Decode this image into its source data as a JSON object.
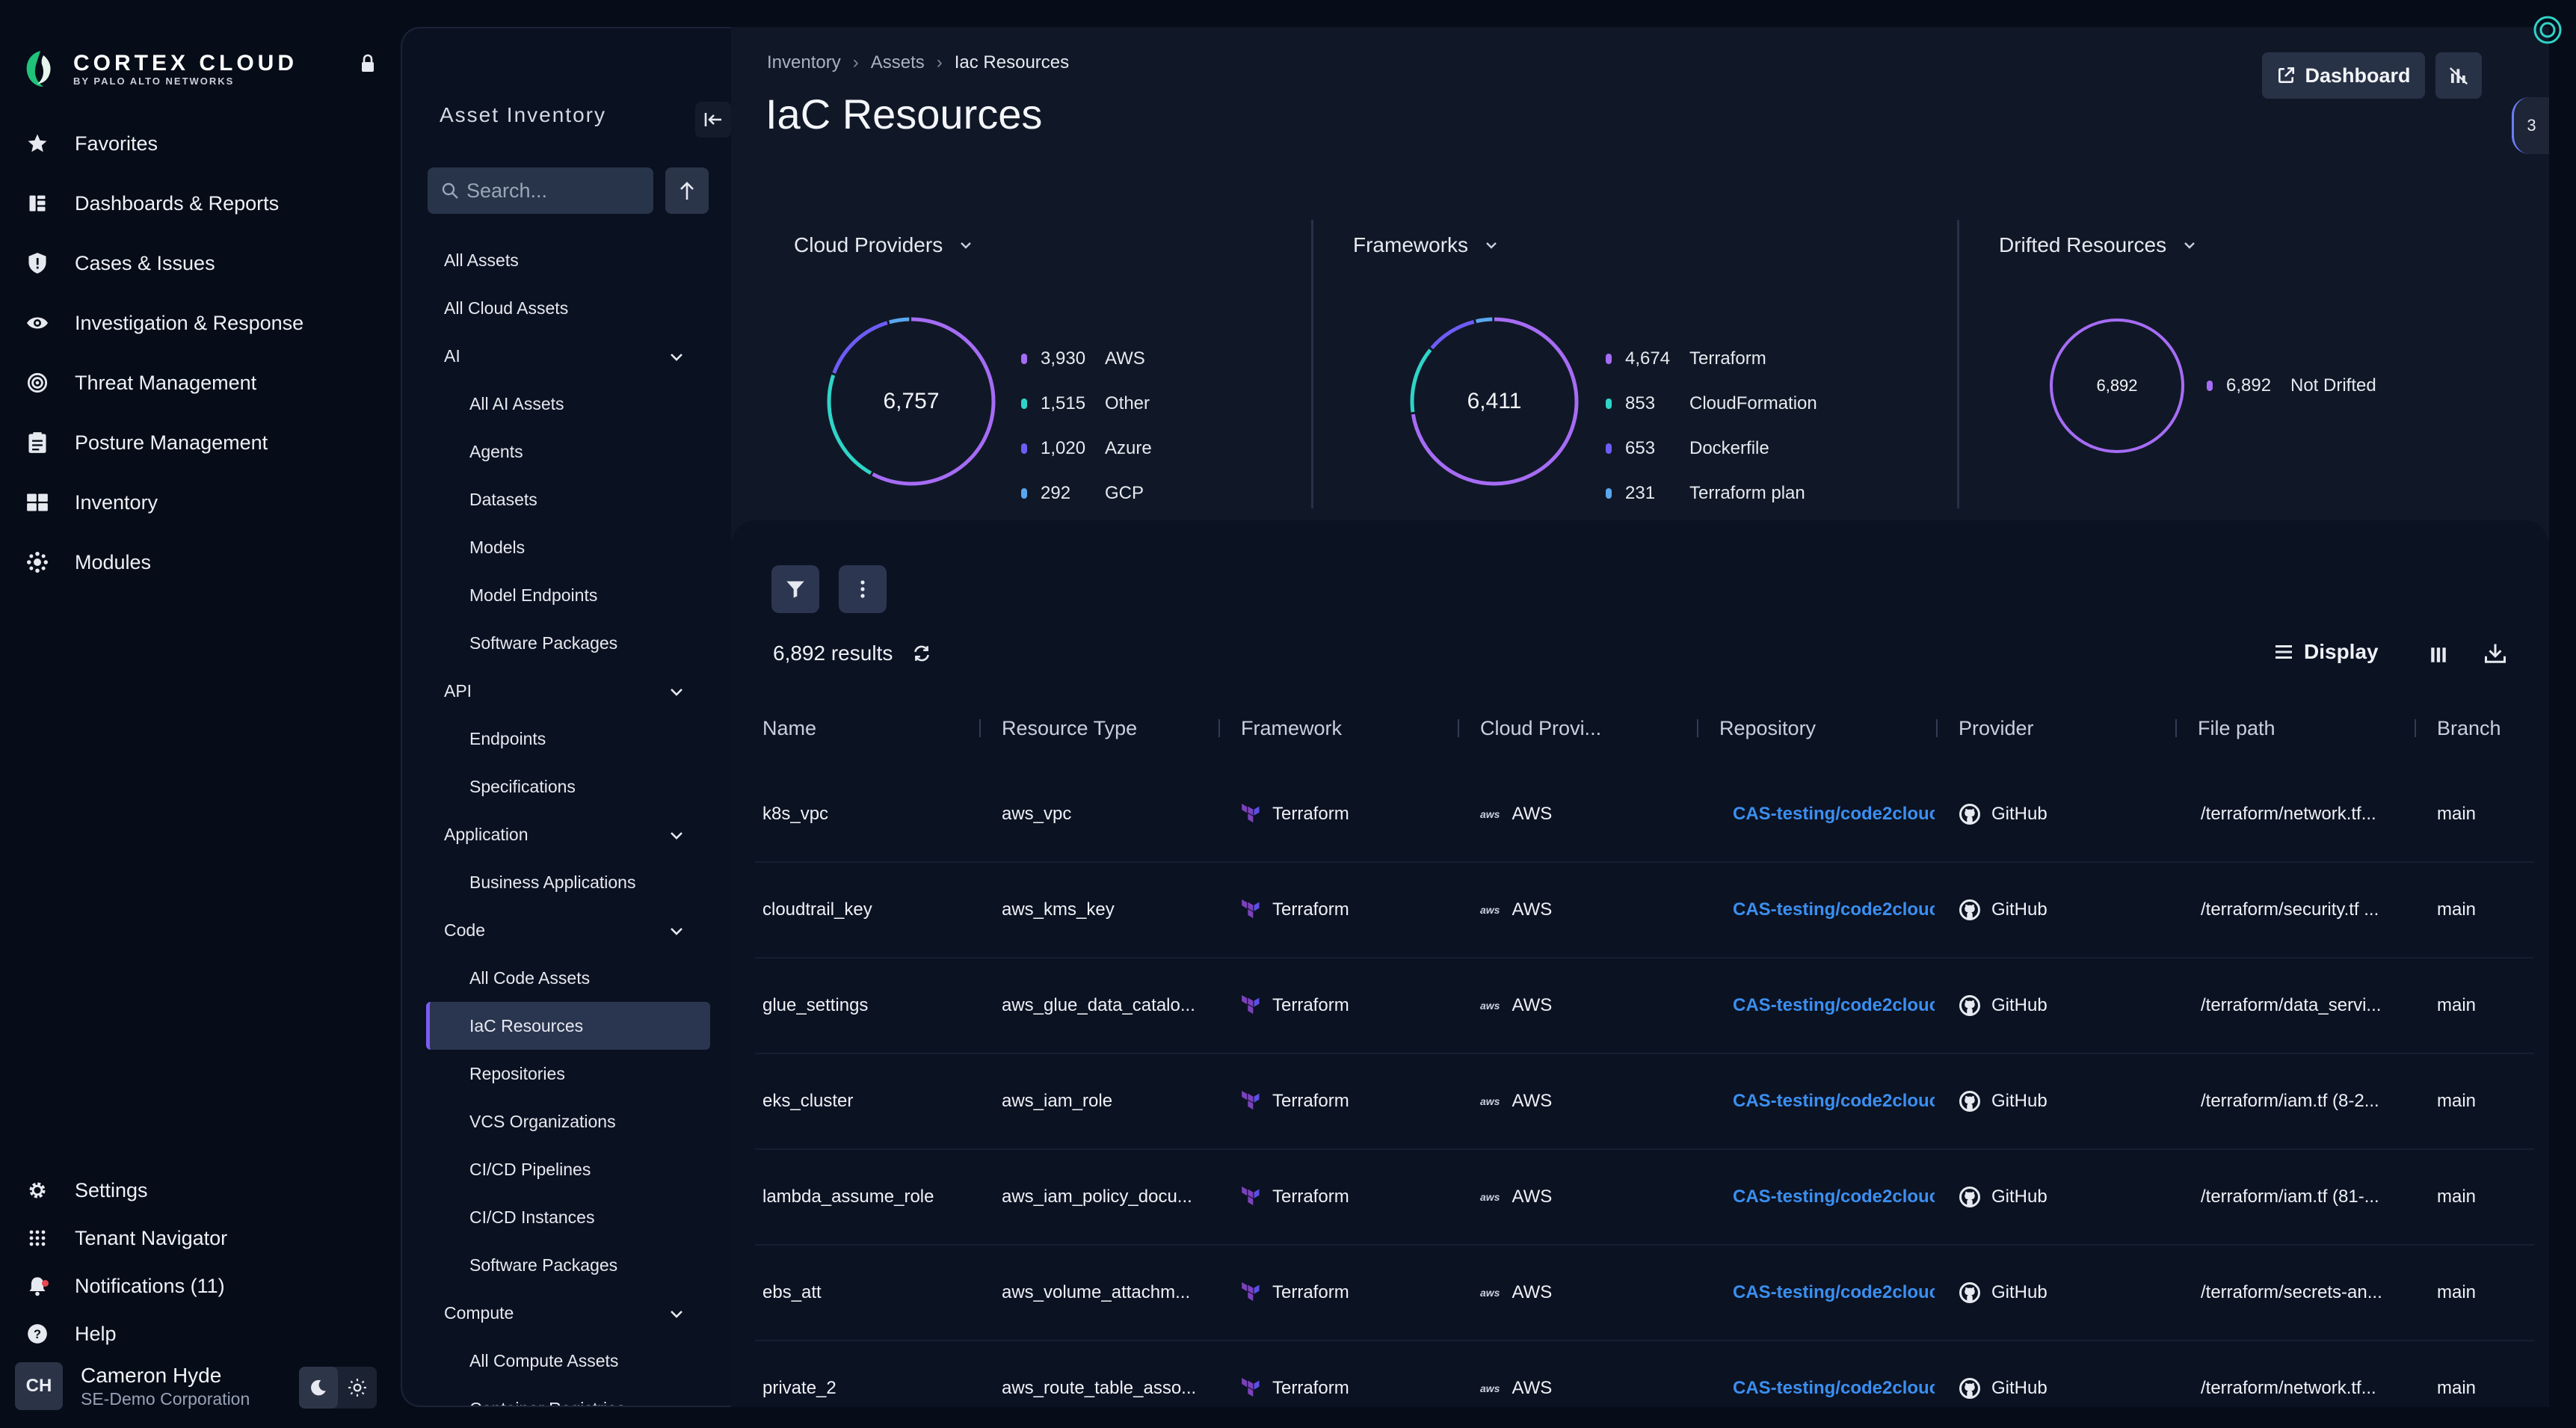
{
  "brand": {
    "name": "CORTEX CLOUD",
    "sub": "BY PALO ALTO NETWORKS"
  },
  "nav": {
    "items": [
      {
        "label": "Favorites",
        "icon": "star-icon"
      },
      {
        "label": "Dashboards & Reports",
        "icon": "dashboard-icon"
      },
      {
        "label": "Cases & Issues",
        "icon": "shield-alert-icon"
      },
      {
        "label": "Investigation & Response",
        "icon": "eye-icon"
      },
      {
        "label": "Threat Management",
        "icon": "target-icon"
      },
      {
        "label": "Posture Management",
        "icon": "clipboard-icon"
      },
      {
        "label": "Inventory",
        "icon": "inventory-icon"
      },
      {
        "label": "Modules",
        "icon": "modules-icon"
      }
    ],
    "bottom": [
      {
        "label": "Settings",
        "icon": "gear-icon"
      },
      {
        "label": "Tenant Navigator",
        "icon": "grid-icon"
      },
      {
        "label": "Notifications (11)",
        "icon": "bell-icon"
      },
      {
        "label": "Help",
        "icon": "help-icon"
      }
    ]
  },
  "user": {
    "initials": "CH",
    "name": "Cameron Hyde",
    "org": "SE-Demo Corporation"
  },
  "asset_panel": {
    "title": "Asset Inventory",
    "search_placeholder": "Search...",
    "tree": [
      {
        "label": "All Assets",
        "level": 0
      },
      {
        "label": "All Cloud Assets",
        "level": 0
      },
      {
        "label": "AI",
        "level": 0,
        "expandable": true
      },
      {
        "label": "All AI Assets",
        "level": 1
      },
      {
        "label": "Agents",
        "level": 1
      },
      {
        "label": "Datasets",
        "level": 1
      },
      {
        "label": "Models",
        "level": 1
      },
      {
        "label": "Model Endpoints",
        "level": 1
      },
      {
        "label": "Software Packages",
        "level": 1
      },
      {
        "label": "API",
        "level": 0,
        "expandable": true
      },
      {
        "label": "Endpoints",
        "level": 1
      },
      {
        "label": "Specifications",
        "level": 1
      },
      {
        "label": "Application",
        "level": 0,
        "expandable": true
      },
      {
        "label": "Business Applications",
        "level": 1
      },
      {
        "label": "Code",
        "level": 0,
        "expandable": true
      },
      {
        "label": "All Code Assets",
        "level": 1
      },
      {
        "label": "IaC Resources",
        "level": 1,
        "selected": true
      },
      {
        "label": "Repositories",
        "level": 1
      },
      {
        "label": "VCS Organizations",
        "level": 1
      },
      {
        "label": "CI/CD Pipelines",
        "level": 1
      },
      {
        "label": "CI/CD Instances",
        "level": 1
      },
      {
        "label": "Software Packages",
        "level": 1
      },
      {
        "label": "Compute",
        "level": 0,
        "expandable": true
      },
      {
        "label": "All Compute Assets",
        "level": 1
      },
      {
        "label": "Container Registries",
        "level": 1
      }
    ]
  },
  "header": {
    "breadcrumb": [
      "Inventory",
      "Assets",
      "Iac Resources"
    ],
    "title": "IaC Resources",
    "dashboard_label": "Dashboard",
    "side_tab_count": "3"
  },
  "summary": {
    "cloud_providers": {
      "title": "Cloud Providers",
      "total": "6,757",
      "items": [
        {
          "count": "3,930",
          "label": "AWS",
          "color": "#a66cf5"
        },
        {
          "count": "1,515",
          "label": "Other",
          "color": "#2fd4c8"
        },
        {
          "count": "1,020",
          "label": "Azure",
          "color": "#6e5cf6"
        },
        {
          "count": "292",
          "label": "GCP",
          "color": "#5aa7f0"
        }
      ]
    },
    "frameworks": {
      "title": "Frameworks",
      "total": "6,411",
      "items": [
        {
          "count": "4,674",
          "label": "Terraform",
          "color": "#a66cf5"
        },
        {
          "count": "853",
          "label": "CloudFormation",
          "color": "#2fd4c8"
        },
        {
          "count": "653",
          "label": "Dockerfile",
          "color": "#6e5cf6"
        },
        {
          "count": "231",
          "label": "Terraform plan",
          "color": "#5aa7f0"
        }
      ]
    },
    "drifted": {
      "title": "Drifted Resources",
      "total": "6,892",
      "items": [
        {
          "count": "6,892",
          "label": "Not Drifted",
          "color": "#a66cf5"
        }
      ]
    }
  },
  "table": {
    "results": "6,892 results",
    "display_label": "Display",
    "columns": [
      "Name",
      "Resource Type",
      "Framework",
      "Cloud Provi...",
      "Repository",
      "Provider",
      "File path",
      "Branch"
    ],
    "rows": [
      {
        "name": "k8s_vpc",
        "type": "aws_vpc",
        "framework": "Terraform",
        "cloud": "AWS",
        "repo": "CAS-testing/code2clouc",
        "provider": "GitHub",
        "path": "/terraform/network.tf...",
        "branch": "main"
      },
      {
        "name": "cloudtrail_key",
        "type": "aws_kms_key",
        "framework": "Terraform",
        "cloud": "AWS",
        "repo": "CAS-testing/code2clouc",
        "provider": "GitHub",
        "path": "/terraform/security.tf ...",
        "branch": "main"
      },
      {
        "name": "glue_settings",
        "type": "aws_glue_data_catalo...",
        "framework": "Terraform",
        "cloud": "AWS",
        "repo": "CAS-testing/code2clouc",
        "provider": "GitHub",
        "path": "/terraform/data_servi...",
        "branch": "main"
      },
      {
        "name": "eks_cluster",
        "type": "aws_iam_role",
        "framework": "Terraform",
        "cloud": "AWS",
        "repo": "CAS-testing/code2clouc",
        "provider": "GitHub",
        "path": "/terraform/iam.tf (8-2...",
        "branch": "main"
      },
      {
        "name": "lambda_assume_role",
        "type": "aws_iam_policy_docu...",
        "framework": "Terraform",
        "cloud": "AWS",
        "repo": "CAS-testing/code2clouc",
        "provider": "GitHub",
        "path": "/terraform/iam.tf (81-...",
        "branch": "main"
      },
      {
        "name": "ebs_att",
        "type": "aws_volume_attachm...",
        "framework": "Terraform",
        "cloud": "AWS",
        "repo": "CAS-testing/code2clouc",
        "provider": "GitHub",
        "path": "/terraform/secrets-an...",
        "branch": "main"
      },
      {
        "name": "private_2",
        "type": "aws_route_table_asso...",
        "framework": "Terraform",
        "cloud": "AWS",
        "repo": "CAS-testing/code2clouc",
        "provider": "GitHub",
        "path": "/terraform/network.tf...",
        "branch": "main"
      }
    ]
  },
  "colors": {
    "accent": "#7c5cf2",
    "link": "#3b8ff0",
    "terraform": "#7b42bc",
    "brand_green": "#1fc47a"
  }
}
